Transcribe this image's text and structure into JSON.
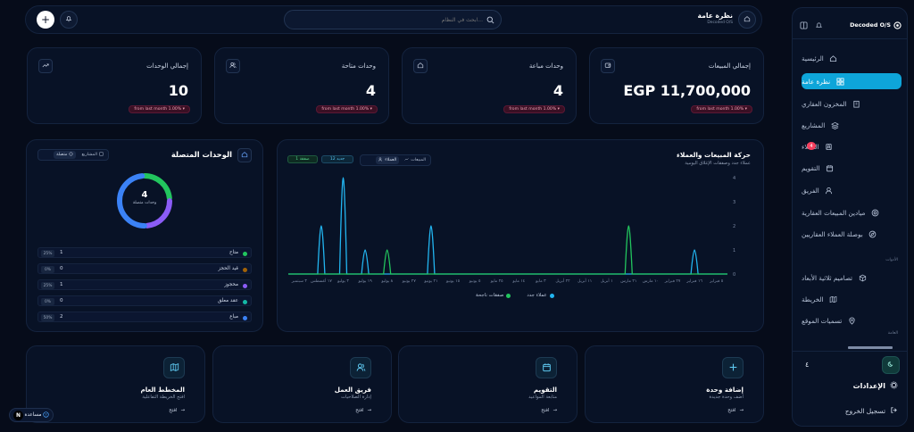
{
  "sidebar": {
    "brand": "Decoded O/S",
    "items": [
      {
        "label": "الرئيسية",
        "icon": "home-icon"
      },
      {
        "label": "نظرة عامة",
        "icon": "grid-icon"
      },
      {
        "label": "المخزون العقاري",
        "icon": "building-icon"
      },
      {
        "label": "المشاريع",
        "icon": "layers-icon"
      },
      {
        "label": "العملاء",
        "icon": "contacts-icon",
        "badge": "4"
      },
      {
        "label": "التقويم",
        "icon": "calendar-icon"
      },
      {
        "label": "الفريق",
        "icon": "user-icon"
      },
      {
        "label": "ميادين المبيعات العقارية",
        "icon": "target-icon"
      },
      {
        "label": "بوصلة العملاء العقاريين",
        "icon": "compass-icon"
      }
    ],
    "section_tools": "الأدوات",
    "tools": [
      {
        "label": "تصاميم ثلاثية الأبعاد",
        "icon": "cube-icon"
      },
      {
        "label": "الخريطة",
        "icon": "map-icon"
      },
      {
        "label": "تسميات الموقع",
        "icon": "pin-icon"
      }
    ],
    "section_general": "العامة",
    "count": "٤",
    "settings": "الإعدادات",
    "logout": "تسجيل الخروج"
  },
  "header": {
    "title": "نظرة عامة",
    "subtitle": "Decoded O/S",
    "search_placeholder": "ابحث في النظام..."
  },
  "kpis": [
    {
      "title": "إجمالي المبيعات",
      "value": "EGP 11,700,000",
      "change": "from last month 1.00% ▾",
      "icon": "wallet-icon"
    },
    {
      "title": "وحدات مباعة",
      "value": "4",
      "change": "from last month 1.00% ▾",
      "icon": "home-icon"
    },
    {
      "title": "وحدات متاحة",
      "value": "4",
      "change": "from last month 1.00% ▾",
      "icon": "users-icon"
    },
    {
      "title": "إجمالي الوحدات",
      "value": "10",
      "change": "from last month 1.00% ▾",
      "icon": "trend-icon"
    }
  ],
  "activity": {
    "title": "حركة المبيعات والعملاء",
    "subtitle": "عملاء جدد وصفقات الإغلاق اليومية",
    "chip_sales": "المبيعات",
    "chip_clients": "العملاء",
    "chip_new": "12 جديد",
    "chip_deals": "1 صفقة",
    "legend_clients": "عملاء جدد",
    "legend_deals": "صفقات ناجحة"
  },
  "units": {
    "title": "الوحدات المتصلة",
    "tab_connected": "متصلة",
    "tab_projects": "المشاريع",
    "donut_value": "4",
    "donut_label": "وحدات متصلة",
    "rows": [
      {
        "name": "متاح",
        "count": "1",
        "pct": "25%",
        "color": "#22c55e"
      },
      {
        "name": "قيد الحجز",
        "count": "0",
        "pct": "0%",
        "color": "#a16207"
      },
      {
        "name": "محجوز",
        "count": "1",
        "pct": "25%",
        "color": "#8b5cf6"
      },
      {
        "name": "عقد معلق",
        "count": "0",
        "pct": "0%",
        "color": "#14b8a6"
      },
      {
        "name": "مباع",
        "count": "2",
        "pct": "50%",
        "color": "#3b82f6"
      }
    ]
  },
  "actions": [
    {
      "title": "إضافة وحدة",
      "sub": "أضف وحدة جديدة",
      "link": "افتح",
      "icon": "plus-icon"
    },
    {
      "title": "التقويم",
      "sub": "متابعة المواعيد",
      "link": "افتح",
      "icon": "calendar-icon"
    },
    {
      "title": "فريق العمل",
      "sub": "إدارة الصلاحيات",
      "link": "افتح",
      "icon": "users-icon"
    },
    {
      "title": "المخطط العام",
      "sub": "افتح الخريطة التفاعلية",
      "link": "افتح",
      "icon": "map-icon"
    }
  ],
  "help_label": "مساعدة",
  "colors": {
    "accent": "#0ea5d9",
    "blue": "#3b82f6",
    "green": "#22c55e",
    "purple": "#8b5cf6",
    "badge": "#f43f5e"
  },
  "chart_data": {
    "type": "line",
    "yticks": [
      0,
      1,
      2,
      3,
      4
    ],
    "ylim": [
      0,
      4
    ],
    "x": [
      "٣ سبتمبر",
      "١٧ أغسطس",
      "٣ يوليو",
      "١٩ يوليو",
      "٨ يوليو",
      "٢٧ يونيو",
      "٢١ يونيو",
      "١٥ يونيو",
      "٥ يونيو",
      "٢٥ مايو",
      "١٤ مايو",
      "٣ مايو",
      "٢٢ أبريل",
      "١١ أبريل",
      "١ أبريل",
      "٢١ مارس",
      "١٠ مارس",
      "٢٧ فبراير",
      "١٦ فبراير",
      "٥ فبراير"
    ],
    "series": [
      {
        "name": "عملاء جدد",
        "color": "#22b5f0",
        "values": [
          0,
          2,
          4,
          1,
          0,
          0,
          2,
          0,
          0,
          0,
          0,
          0,
          0,
          0,
          0,
          0,
          0,
          0,
          1,
          0
        ]
      },
      {
        "name": "صفقات ناجحة",
        "color": "#22c55e",
        "values": [
          0,
          0,
          0,
          0,
          1,
          0,
          0,
          0,
          0,
          0,
          0,
          0,
          0,
          0,
          0,
          2,
          0,
          0,
          0,
          0
        ]
      }
    ]
  }
}
